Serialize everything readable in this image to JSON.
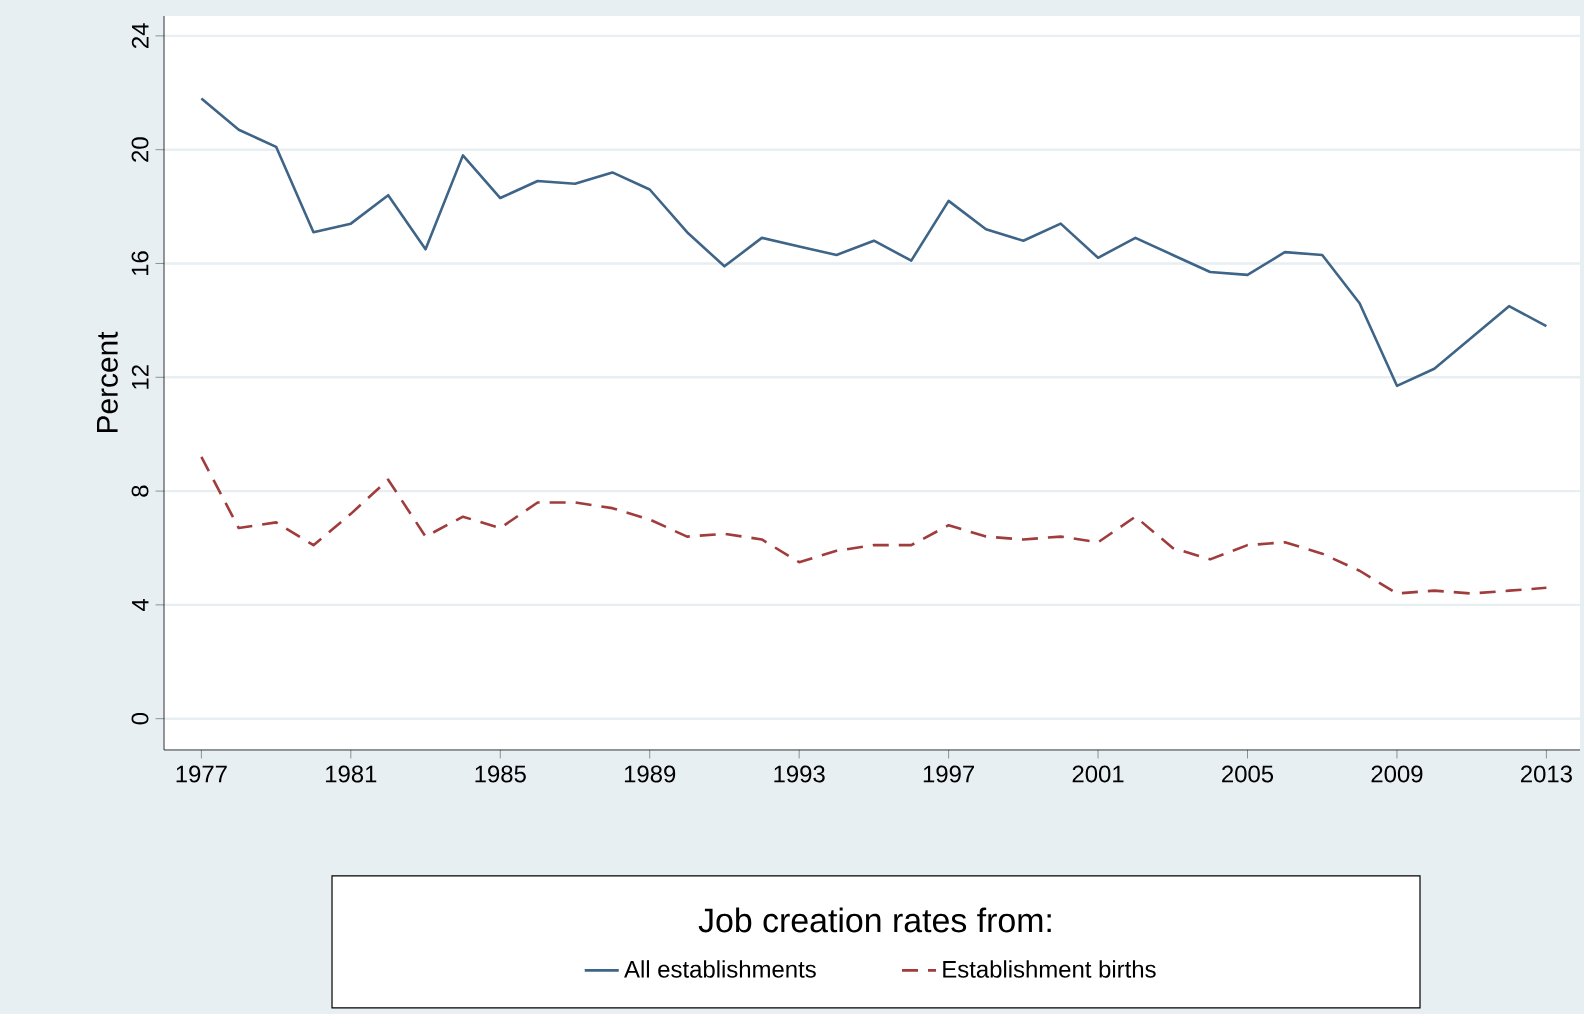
{
  "chart_data": {
    "type": "line",
    "ylabel": "Percent",
    "legend_title": "Job creation rates from:",
    "x": [
      1977,
      1978,
      1979,
      1980,
      1981,
      1982,
      1983,
      1984,
      1985,
      1986,
      1987,
      1988,
      1989,
      1990,
      1991,
      1992,
      1993,
      1994,
      1995,
      1996,
      1997,
      1998,
      1999,
      2000,
      2001,
      2002,
      2003,
      2004,
      2005,
      2006,
      2007,
      2008,
      2009,
      2010,
      2011,
      2012,
      2013
    ],
    "series": [
      {
        "name": "All establishments",
        "color": "#3e6487",
        "line_style": "solid",
        "values": [
          21.8,
          20.7,
          20.1,
          17.1,
          17.4,
          18.4,
          16.5,
          19.8,
          18.3,
          18.9,
          18.8,
          19.2,
          18.6,
          17.1,
          15.9,
          16.9,
          16.6,
          16.3,
          16.8,
          16.1,
          18.2,
          17.2,
          16.8,
          17.4,
          16.2,
          16.9,
          16.3,
          15.7,
          15.6,
          16.4,
          16.3,
          14.6,
          11.7,
          12.3,
          13.4,
          14.5,
          13.8
        ]
      },
      {
        "name": "Establishment births",
        "color": "#a03c3c",
        "line_style": "dashed",
        "values": [
          9.2,
          6.7,
          6.9,
          6.1,
          7.2,
          8.4,
          6.4,
          7.1,
          6.7,
          7.6,
          7.6,
          7.4,
          7.0,
          6.4,
          6.5,
          6.3,
          5.5,
          5.9,
          6.1,
          6.1,
          6.8,
          6.4,
          6.3,
          6.4,
          6.2,
          7.1,
          6.0,
          5.6,
          6.1,
          6.2,
          5.8,
          5.2,
          4.4,
          4.5,
          4.4,
          4.5,
          4.6
        ]
      }
    ],
    "xlim": [
      1976,
      2013.9
    ],
    "ylim": [
      -1.1,
      24.7
    ],
    "xticks": [
      1977,
      1981,
      1985,
      1989,
      1993,
      1997,
      2001,
      2005,
      2009,
      2013
    ],
    "yticks": [
      0,
      4,
      8,
      12,
      16,
      20,
      24
    ],
    "grid": "y",
    "legend": "bottom",
    "marker": "none"
  }
}
